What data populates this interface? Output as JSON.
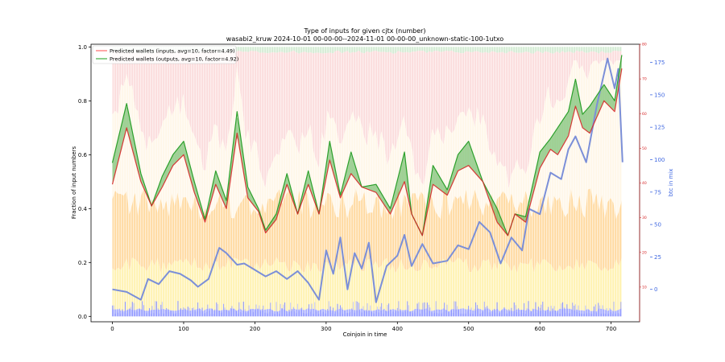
{
  "chart_data": {
    "type": "area",
    "title": "Type of inputs for given cjtx (number)",
    "subtitle": "wasabi2_kruw 2024-10-01 00-00-00--2024-11-01 00-00-00_unknown-static-100-1utxo",
    "xlabel": "Coinjoin in time",
    "ylabel": "Fraction of input numbers",
    "y2label": "btc in mix",
    "xlim": [
      -30,
      740
    ],
    "ylim": [
      -0.02,
      1.01
    ],
    "y2lim": [
      -25,
      189
    ],
    "y3lim": [
      0,
      80
    ],
    "x_ticks": [
      0,
      100,
      200,
      300,
      400,
      500,
      600,
      700
    ],
    "y_ticks": [
      0.0,
      0.2,
      0.4,
      0.6,
      0.8,
      1.0
    ],
    "y2_ticks": [
      0,
      25,
      50,
      75,
      100,
      125,
      150,
      175
    ],
    "y3_ticks": [
      10,
      20,
      30,
      40,
      50,
      60,
      70,
      80
    ],
    "grid": false,
    "legend_position": "top-left",
    "colors": {
      "inputs_line": "#d62728",
      "outputs_line": "#2ca02c",
      "fill_above": "#2ca02c",
      "fill_below": "#e32222",
      "btc_line": "#7b8fd8",
      "band_blue": "#aab0ff",
      "band_yellow": "#fff2b0",
      "band_orange": "#ffd9a0",
      "band_cream": "#fff7e8",
      "band_pink": "#fbdcdc",
      "band_green": "#d4ecd4"
    },
    "series": [
      {
        "name": "Predicted wallets (inputs, avg=10, factor=4.49)",
        "x": [
          0,
          20,
          40,
          55,
          70,
          85,
          100,
          115,
          130,
          145,
          160,
          175,
          190,
          205,
          215,
          230,
          245,
          260,
          275,
          290,
          305,
          320,
          335,
          350,
          370,
          390,
          410,
          420,
          435,
          450,
          470,
          485,
          500,
          520,
          540,
          555,
          565,
          580,
          600,
          615,
          625,
          640,
          650,
          660,
          670,
          690,
          705,
          715
        ],
        "values": [
          0.49,
          0.7,
          0.5,
          0.41,
          0.48,
          0.56,
          0.6,
          0.46,
          0.35,
          0.49,
          0.4,
          0.68,
          0.44,
          0.39,
          0.31,
          0.36,
          0.49,
          0.38,
          0.49,
          0.38,
          0.58,
          0.44,
          0.53,
          0.48,
          0.46,
          0.38,
          0.5,
          0.38,
          0.3,
          0.49,
          0.45,
          0.54,
          0.56,
          0.5,
          0.35,
          0.3,
          0.38,
          0.35,
          0.55,
          0.62,
          0.6,
          0.67,
          0.78,
          0.7,
          0.68,
          0.8,
          0.76,
          0.92
        ]
      },
      {
        "name": "Predicted wallets (outputs, avg=10, factor=4.92)",
        "x": [
          0,
          20,
          40,
          55,
          70,
          85,
          100,
          115,
          130,
          145,
          160,
          175,
          190,
          205,
          215,
          230,
          245,
          260,
          275,
          290,
          305,
          320,
          335,
          350,
          370,
          390,
          410,
          420,
          435,
          450,
          470,
          485,
          500,
          520,
          540,
          555,
          565,
          580,
          600,
          615,
          625,
          640,
          650,
          660,
          670,
          690,
          705,
          715
        ],
        "values": [
          0.57,
          0.79,
          0.53,
          0.41,
          0.52,
          0.6,
          0.65,
          0.5,
          0.36,
          0.54,
          0.43,
          0.76,
          0.48,
          0.4,
          0.32,
          0.38,
          0.53,
          0.38,
          0.54,
          0.38,
          0.65,
          0.45,
          0.61,
          0.48,
          0.49,
          0.4,
          0.61,
          0.38,
          0.3,
          0.56,
          0.47,
          0.6,
          0.65,
          0.5,
          0.4,
          0.3,
          0.38,
          0.37,
          0.61,
          0.66,
          0.7,
          0.76,
          0.88,
          0.75,
          0.78,
          0.86,
          0.8,
          0.97
        ]
      },
      {
        "name": "btc in mix",
        "axis": "right",
        "x": [
          0,
          20,
          40,
          50,
          65,
          80,
          95,
          110,
          120,
          135,
          150,
          160,
          175,
          185,
          200,
          215,
          230,
          245,
          260,
          275,
          290,
          300,
          310,
          320,
          330,
          340,
          350,
          360,
          370,
          385,
          400,
          410,
          420,
          435,
          450,
          470,
          485,
          500,
          515,
          530,
          545,
          560,
          575,
          585,
          600,
          615,
          630,
          640,
          650,
          665,
          680,
          695,
          705,
          710,
          716
        ],
        "values": [
          0,
          -2,
          -8,
          8,
          4,
          14,
          12,
          7,
          2,
          8,
          32,
          28,
          19,
          20,
          15,
          10,
          14,
          8,
          14,
          5,
          -8,
          30,
          12,
          40,
          0,
          28,
          16,
          36,
          -10,
          18,
          26,
          42,
          18,
          35,
          20,
          22,
          34,
          31,
          52,
          44,
          20,
          40,
          30,
          62,
          58,
          90,
          85,
          108,
          118,
          98,
          142,
          178,
          155,
          170,
          98
        ]
      }
    ]
  },
  "legend": {
    "entries": [
      "Predicted wallets (inputs, avg=10, factor=4.49)",
      "Predicted wallets (outputs, avg=10, factor=4.92)"
    ]
  }
}
